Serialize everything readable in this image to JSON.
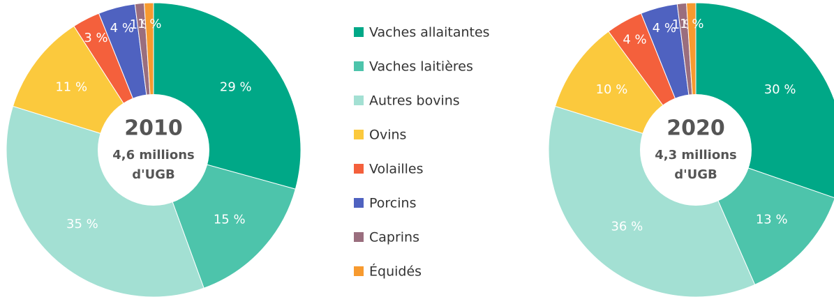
{
  "chart_data": [
    {
      "type": "pie",
      "title": "2010",
      "center_lines": [
        "4,6 millions",
        "d'UGB"
      ],
      "categories": [
        "Vaches allaitantes",
        "Vaches laitières",
        "Autres bovins",
        "Ovins",
        "Volailles",
        "Porcins",
        "Caprins",
        "Équidés"
      ],
      "colors": [
        "#00a887",
        "#4dc4ab",
        "#a3e0d3",
        "#fbc93d",
        "#f4603c",
        "#4f62c0",
        "#9a6e7e",
        "#f79a2f"
      ],
      "values": [
        29,
        15,
        35,
        11,
        3,
        4,
        1,
        1
      ],
      "value_labels": [
        "29 %",
        "15 %",
        "35 %",
        "11 %",
        "3 %",
        "4 %",
        "1 %",
        "1 %"
      ]
    },
    {
      "type": "pie",
      "title": "2020",
      "center_lines": [
        "4,3 millions",
        "d'UGB"
      ],
      "values": [
        30,
        13,
        36,
        10,
        4,
        4,
        1,
        1
      ],
      "value_labels": [
        "30 %",
        "13 %",
        "36 %",
        "10 %",
        "4 %",
        "4 %",
        "1 %",
        "1 %"
      ]
    }
  ]
}
